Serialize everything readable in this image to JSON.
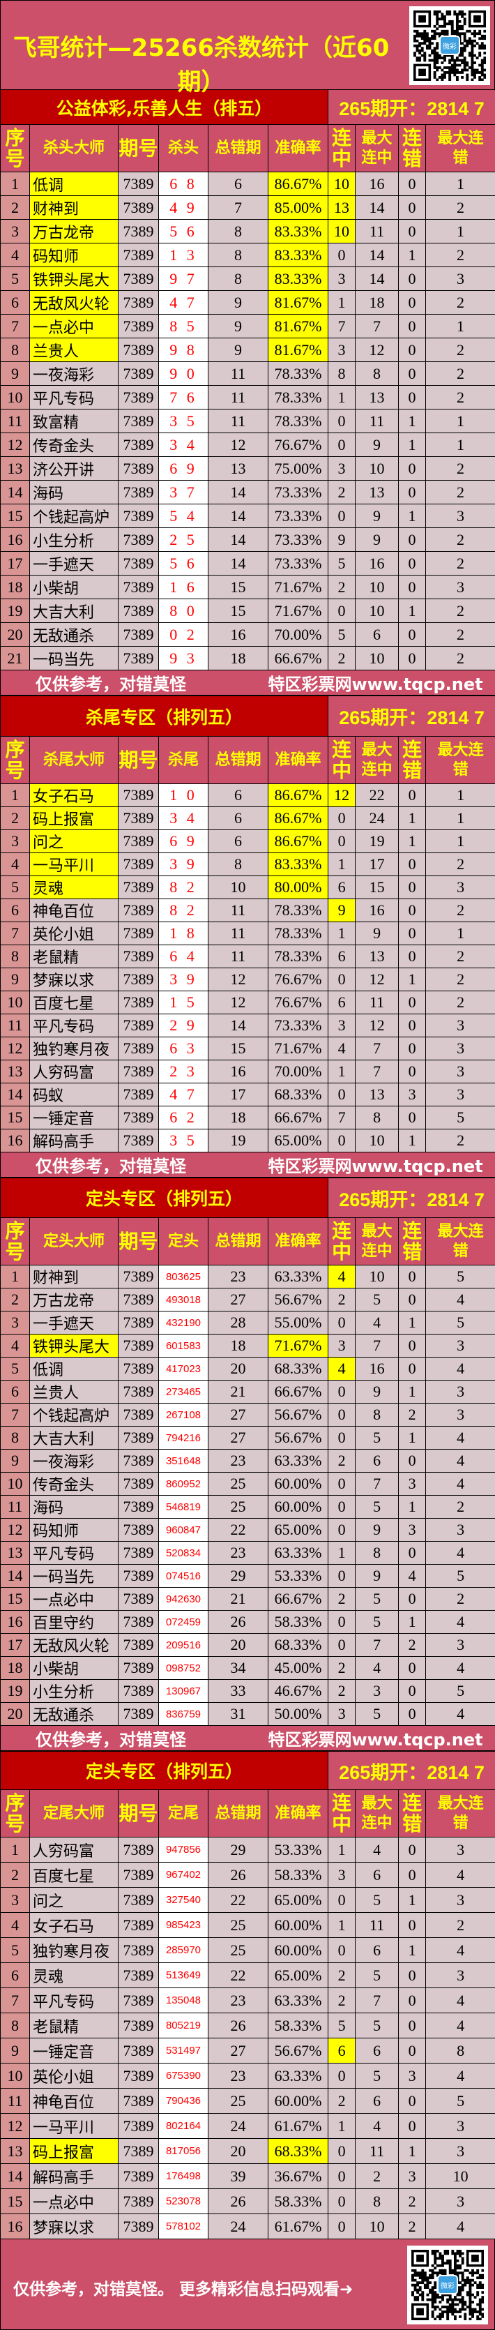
{
  "title": "飞哥统计—25266杀数统计（近60期）",
  "qr_logo_text": "微彩",
  "colors": {
    "bg": "#cc5069",
    "dark_red": "#c00000",
    "cell": "#d9c8cc",
    "seq": "#d99594",
    "highlight": "#ffff00",
    "kill_text": "#ff0000"
  },
  "footer": {
    "left": "仅供参考，对错莫怪",
    "right": "特区彩票网www.tqcp.net"
  },
  "final_footer": "仅供参考，对错莫怪。 更多精彩信息扫码观看➜",
  "sections": [
    {
      "heading": "公益体彩,乐善人生（排五）",
      "draw": "265期开：2814 7",
      "columns": [
        "序号",
        "杀头大师",
        "期号",
        "杀头",
        "总错期",
        "准确率",
        "连中",
        "最大连中",
        "连错",
        "最大连错"
      ],
      "highlight_name_acc_rows": [
        1,
        2,
        3,
        4,
        5,
        6,
        7,
        8
      ],
      "highlight_streak_rows": [
        1,
        2,
        3
      ],
      "rows": [
        [
          "1",
          "低调",
          "7389",
          "6 8",
          "6",
          "86.67%",
          "10",
          "16",
          "0",
          "1"
        ],
        [
          "2",
          "财神到",
          "7389",
          "4 9",
          "7",
          "85.00%",
          "13",
          "14",
          "0",
          "2"
        ],
        [
          "3",
          "万古龙帝",
          "7389",
          "5 6",
          "8",
          "83.33%",
          "10",
          "11",
          "0",
          "1"
        ],
        [
          "4",
          "码知师",
          "7389",
          "1 3",
          "8",
          "83.33%",
          "0",
          "14",
          "1",
          "2"
        ],
        [
          "5",
          "铁钾头尾大",
          "7389",
          "9 7",
          "8",
          "83.33%",
          "3",
          "14",
          "0",
          "3"
        ],
        [
          "6",
          "无敌风火轮",
          "7389",
          "4 7",
          "9",
          "81.67%",
          "1",
          "18",
          "0",
          "2"
        ],
        [
          "7",
          "一点必中",
          "7389",
          "8 5",
          "9",
          "81.67%",
          "7",
          "7",
          "0",
          "1"
        ],
        [
          "8",
          "兰贵人",
          "7389",
          "9 8",
          "9",
          "81.67%",
          "3",
          "12",
          "0",
          "2"
        ],
        [
          "9",
          "一夜海彩",
          "7389",
          "9 0",
          "11",
          "78.33%",
          "8",
          "8",
          "0",
          "2"
        ],
        [
          "10",
          "平凡专码",
          "7389",
          "7 6",
          "11",
          "78.33%",
          "1",
          "13",
          "0",
          "2"
        ],
        [
          "11",
          "致富精",
          "7389",
          "3 5",
          "11",
          "78.33%",
          "0",
          "11",
          "1",
          "1"
        ],
        [
          "12",
          "传奇金头",
          "7389",
          "3 4",
          "12",
          "76.67%",
          "0",
          "9",
          "1",
          "1"
        ],
        [
          "13",
          "济公开讲",
          "7389",
          "6 9",
          "13",
          "75.00%",
          "3",
          "10",
          "0",
          "2"
        ],
        [
          "14",
          "海码",
          "7389",
          "3 7",
          "14",
          "73.33%",
          "2",
          "13",
          "0",
          "2"
        ],
        [
          "15",
          "个钱起高炉",
          "7389",
          "5 4",
          "14",
          "73.33%",
          "0",
          "9",
          "1",
          "3"
        ],
        [
          "16",
          "小生分析",
          "7389",
          "2 5",
          "14",
          "73.33%",
          "9",
          "9",
          "0",
          "2"
        ],
        [
          "17",
          "一手遮天",
          "7389",
          "5 6",
          "14",
          "73.33%",
          "5",
          "16",
          "0",
          "2"
        ],
        [
          "18",
          "小柴胡",
          "7389",
          "1 6",
          "15",
          "71.67%",
          "2",
          "10",
          "0",
          "3"
        ],
        [
          "19",
          "大吉大利",
          "7389",
          "8 0",
          "15",
          "71.67%",
          "0",
          "10",
          "1",
          "2"
        ],
        [
          "20",
          "无敌通杀",
          "7389",
          "0 2",
          "16",
          "70.00%",
          "5",
          "6",
          "0",
          "2"
        ],
        [
          "21",
          "一码当先",
          "7389",
          "9 3",
          "18",
          "66.67%",
          "2",
          "10",
          "0",
          "2"
        ]
      ]
    },
    {
      "heading": "杀尾专区（排列五）",
      "draw": "265期开：2814 7",
      "columns": [
        "序号",
        "杀尾大师",
        "期号",
        "杀尾",
        "总错期",
        "准确率",
        "连中",
        "最大连中",
        "连错",
        "最大连错"
      ],
      "highlight_name_acc_rows": [
        1,
        2,
        3,
        4,
        5
      ],
      "highlight_streak_rows": [
        1,
        6
      ],
      "rows": [
        [
          "1",
          "女子石马",
          "7389",
          "1 0",
          "6",
          "86.67%",
          "12",
          "22",
          "0",
          "1"
        ],
        [
          "2",
          "码上报富",
          "7389",
          "3 4",
          "6",
          "86.67%",
          "0",
          "24",
          "1",
          "1"
        ],
        [
          "3",
          "问之",
          "7389",
          "6 9",
          "6",
          "86.67%",
          "0",
          "19",
          "1",
          "1"
        ],
        [
          "4",
          "一马平川",
          "7389",
          "3 9",
          "8",
          "83.33%",
          "1",
          "17",
          "0",
          "2"
        ],
        [
          "5",
          "灵魂",
          "7389",
          "8 2",
          "10",
          "80.00%",
          "6",
          "15",
          "0",
          "3"
        ],
        [
          "6",
          "神龟百位",
          "7389",
          "8 2",
          "11",
          "78.33%",
          "9",
          "16",
          "0",
          "2"
        ],
        [
          "7",
          "英伦小姐",
          "7389",
          "1 8",
          "11",
          "78.33%",
          "1",
          "9",
          "0",
          "1"
        ],
        [
          "8",
          "老鼠精",
          "7389",
          "6 4",
          "11",
          "78.33%",
          "6",
          "13",
          "0",
          "2"
        ],
        [
          "9",
          "梦寐以求",
          "7389",
          "3 9",
          "12",
          "76.67%",
          "0",
          "12",
          "1",
          "2"
        ],
        [
          "10",
          "百度七星",
          "7389",
          "1 5",
          "12",
          "76.67%",
          "6",
          "11",
          "0",
          "2"
        ],
        [
          "11",
          "平凡专码",
          "7389",
          "2 9",
          "14",
          "73.33%",
          "3",
          "12",
          "0",
          "3"
        ],
        [
          "12",
          "独钓寒月夜",
          "7389",
          "6 3",
          "15",
          "71.67%",
          "4",
          "7",
          "0",
          "3"
        ],
        [
          "13",
          "人穷码富",
          "7389",
          "2 3",
          "16",
          "70.00%",
          "1",
          "7",
          "0",
          "3"
        ],
        [
          "14",
          "码蚁",
          "7389",
          "4 7",
          "17",
          "68.33%",
          "0",
          "13",
          "3",
          "3"
        ],
        [
          "15",
          "一锤定音",
          "7389",
          "6 2",
          "18",
          "66.67%",
          "7",
          "8",
          "0",
          "5"
        ],
        [
          "16",
          "解码高手",
          "7389",
          "3 5",
          "19",
          "65.00%",
          "0",
          "10",
          "1",
          "2"
        ]
      ]
    },
    {
      "heading": "定头专区（排列五）",
      "draw": "265期开：2814 7",
      "columns": [
        "序号",
        "定头大师",
        "期号",
        "定头",
        "总错期",
        "准确率",
        "连中",
        "最大连中",
        "连错",
        "最大连错"
      ],
      "highlight_name_acc_rows": [
        4
      ],
      "highlight_streak_rows": [
        1,
        5
      ],
      "rows": [
        [
          "1",
          "财神到",
          "7389",
          "803625",
          "23",
          "63.33%",
          "4",
          "10",
          "0",
          "5"
        ],
        [
          "2",
          "万古龙帝",
          "7389",
          "493018",
          "27",
          "56.67%",
          "2",
          "5",
          "0",
          "4"
        ],
        [
          "3",
          "一手遮天",
          "7389",
          "432190",
          "28",
          "55.00%",
          "0",
          "4",
          "1",
          "5"
        ],
        [
          "4",
          "铁钾头尾大",
          "7389",
          "601583",
          "18",
          "71.67%",
          "3",
          "7",
          "0",
          "3"
        ],
        [
          "5",
          "低调",
          "7389",
          "417023",
          "20",
          "68.33%",
          "4",
          "16",
          "0",
          "4"
        ],
        [
          "6",
          "兰贵人",
          "7389",
          "273465",
          "21",
          "66.67%",
          "0",
          "9",
          "1",
          "3"
        ],
        [
          "7",
          "个钱起高炉",
          "7389",
          "267108",
          "27",
          "56.67%",
          "0",
          "8",
          "2",
          "3"
        ],
        [
          "8",
          "大吉大利",
          "7389",
          "794216",
          "27",
          "56.67%",
          "0",
          "5",
          "1",
          "4"
        ],
        [
          "9",
          "一夜海彩",
          "7389",
          "351648",
          "23",
          "63.33%",
          "2",
          "6",
          "0",
          "4"
        ],
        [
          "10",
          "传奇金头",
          "7389",
          "860952",
          "25",
          "60.00%",
          "0",
          "7",
          "3",
          "4"
        ],
        [
          "11",
          "海码",
          "7389",
          "546819",
          "25",
          "60.00%",
          "0",
          "5",
          "1",
          "2"
        ],
        [
          "12",
          "码知师",
          "7389",
          "960847",
          "22",
          "65.00%",
          "0",
          "9",
          "3",
          "3"
        ],
        [
          "13",
          "平凡专码",
          "7389",
          "520834",
          "23",
          "63.33%",
          "1",
          "8",
          "0",
          "4"
        ],
        [
          "14",
          "一码当先",
          "7389",
          "074516",
          "29",
          "53.33%",
          "0",
          "9",
          "4",
          "5"
        ],
        [
          "15",
          "一点必中",
          "7389",
          "942630",
          "21",
          "66.67%",
          "2",
          "5",
          "0",
          "2"
        ],
        [
          "16",
          "百里守约",
          "7389",
          "072459",
          "26",
          "58.33%",
          "0",
          "5",
          "1",
          "4"
        ],
        [
          "17",
          "无敌风火轮",
          "7389",
          "209516",
          "20",
          "68.33%",
          "0",
          "7",
          "2",
          "3"
        ],
        [
          "18",
          "小柴胡",
          "7389",
          "098752",
          "34",
          "45.00%",
          "2",
          "4",
          "0",
          "4"
        ],
        [
          "19",
          "小生分析",
          "7389",
          "130967",
          "33",
          "46.67%",
          "2",
          "3",
          "0",
          "5"
        ],
        [
          "20",
          "无敌通杀",
          "7389",
          "836759",
          "31",
          "50.00%",
          "3",
          "5",
          "0",
          "4"
        ]
      ]
    },
    {
      "heading": "定头专区（排列五）",
      "draw": "265期开：2814 7",
      "columns": [
        "序号",
        "定尾大师",
        "期号",
        "定尾",
        "总错期",
        "准确率",
        "连中",
        "最大连中",
        "连错",
        "最大连错"
      ],
      "highlight_name_acc_rows": [
        13
      ],
      "highlight_streak_rows": [
        9
      ],
      "rows": [
        [
          "1",
          "人穷码富",
          "7389",
          "947856",
          "29",
          "53.33%",
          "1",
          "4",
          "0",
          "3"
        ],
        [
          "2",
          "百度七星",
          "7389",
          "967402",
          "26",
          "58.33%",
          "3",
          "6",
          "0",
          "4"
        ],
        [
          "3",
          "问之",
          "7389",
          "327540",
          "22",
          "65.00%",
          "0",
          "5",
          "1",
          "3"
        ],
        [
          "4",
          "女子石马",
          "7389",
          "985423",
          "25",
          "60.00%",
          "1",
          "11",
          "0",
          "2"
        ],
        [
          "5",
          "独钓寒月夜",
          "7389",
          "285970",
          "25",
          "60.00%",
          "0",
          "6",
          "1",
          "4"
        ],
        [
          "6",
          "灵魂",
          "7389",
          "513649",
          "22",
          "65.00%",
          "2",
          "5",
          "0",
          "3"
        ],
        [
          "7",
          "平凡专码",
          "7389",
          "135048",
          "23",
          "63.33%",
          "2",
          "7",
          "0",
          "4"
        ],
        [
          "8",
          "老鼠精",
          "7389",
          "805219",
          "26",
          "58.33%",
          "5",
          "5",
          "0",
          "4"
        ],
        [
          "9",
          "一锤定音",
          "7389",
          "531497",
          "27",
          "56.67%",
          "6",
          "6",
          "0",
          "8"
        ],
        [
          "10",
          "英伦小姐",
          "7389",
          "675390",
          "23",
          "63.33%",
          "0",
          "5",
          "3",
          "4"
        ],
        [
          "11",
          "神龟百位",
          "7389",
          "790436",
          "25",
          "60.00%",
          "2",
          "6",
          "0",
          "5"
        ],
        [
          "12",
          "一马平川",
          "7389",
          "802164",
          "24",
          "61.67%",
          "1",
          "4",
          "0",
          "3"
        ],
        [
          "13",
          "码上报富",
          "7389",
          "817056",
          "20",
          "68.33%",
          "0",
          "11",
          "1",
          "3"
        ],
        [
          "14",
          "解码高手",
          "7389",
          "176498",
          "39",
          "36.67%",
          "0",
          "2",
          "3",
          "10"
        ],
        [
          "15",
          "一点必中",
          "7389",
          "523078",
          "26",
          "58.33%",
          "0",
          "8",
          "2",
          "3"
        ],
        [
          "16",
          "梦寐以求",
          "7389",
          "578102",
          "24",
          "61.67%",
          "0",
          "10",
          "2",
          "4"
        ]
      ]
    }
  ]
}
